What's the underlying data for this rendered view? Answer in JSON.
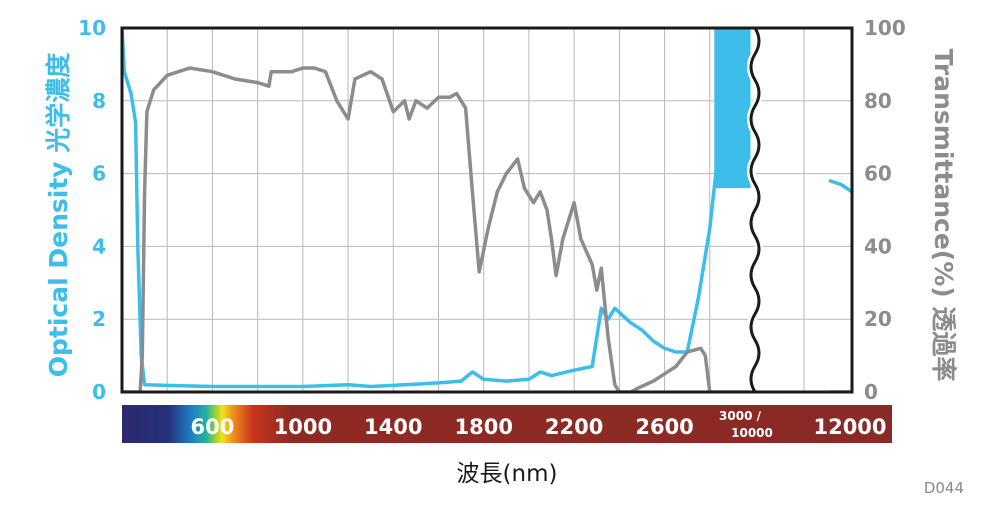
{
  "chart_data": {
    "type": "line",
    "title": "",
    "xlabel": "波長(nm)",
    "ylabel_left": "Optical Density 光学濃度",
    "ylabel_right": "Transmittance(%) 透過率",
    "ylim_left": [
      0,
      10
    ],
    "ylim_right": [
      0,
      100
    ],
    "yticks_left": [
      "0",
      "2",
      "4",
      "6",
      "8",
      "10"
    ],
    "yticks_right": [
      "0",
      "20",
      "40",
      "60",
      "80",
      "100"
    ],
    "xlim": [
      200,
      3000
    ],
    "x_break": {
      "at": 3000,
      "after": [
        3000,
        12000
      ]
    },
    "grid": true,
    "x_scale_labels": [
      {
        "label": "600",
        "x": 600
      },
      {
        "label": "1000",
        "x": 1000
      },
      {
        "label": "1400",
        "x": 1400
      },
      {
        "label": "1800",
        "x": 1800
      },
      {
        "label": "2200",
        "x": 2200
      },
      {
        "label": "2600",
        "x": 2600
      },
      {
        "label": "3000 / 10000",
        "x": 3000
      },
      {
        "label": "12000",
        "x": 12000
      }
    ],
    "series": [
      {
        "name": "Optical Density",
        "axis": "left",
        "color": "#3dbdea",
        "points": [
          [
            200,
            10.0
          ],
          [
            210,
            8.8
          ],
          [
            225,
            8.5
          ],
          [
            240,
            8.2
          ],
          [
            260,
            7.4
          ],
          [
            270,
            4.0
          ],
          [
            285,
            1.0
          ],
          [
            300,
            0.2
          ],
          [
            400,
            0.18
          ],
          [
            600,
            0.15
          ],
          [
            800,
            0.15
          ],
          [
            1000,
            0.15
          ],
          [
            1200,
            0.2
          ],
          [
            1300,
            0.15
          ],
          [
            1450,
            0.2
          ],
          [
            1600,
            0.25
          ],
          [
            1700,
            0.3
          ],
          [
            1750,
            0.55
          ],
          [
            1800,
            0.35
          ],
          [
            1900,
            0.3
          ],
          [
            2000,
            0.35
          ],
          [
            2050,
            0.55
          ],
          [
            2100,
            0.45
          ],
          [
            2200,
            0.6
          ],
          [
            2280,
            0.7
          ],
          [
            2320,
            2.3
          ],
          [
            2350,
            2.0
          ],
          [
            2380,
            2.3
          ],
          [
            2450,
            1.9
          ],
          [
            2500,
            1.7
          ],
          [
            2550,
            1.4
          ],
          [
            2600,
            1.2
          ],
          [
            2650,
            1.1
          ],
          [
            2700,
            1.1
          ],
          [
            2750,
            2.6
          ],
          [
            2800,
            4.5
          ],
          [
            2830,
            6.2
          ],
          [
            2860,
            7.0
          ],
          [
            2900,
            6.5
          ],
          [
            2940,
            6.3
          ],
          [
            2970,
            5.8
          ],
          [
            3000,
            5.7
          ]
        ],
        "points_after_break": [
          [
            10000,
            5.8
          ],
          [
            10500,
            5.75
          ],
          [
            11000,
            5.7
          ],
          [
            11500,
            5.6
          ],
          [
            12000,
            5.5
          ]
        ],
        "dense_band": {
          "x": [
            2820,
            2980
          ],
          "y": [
            5.6,
            10.0
          ]
        }
      },
      {
        "name": "Transmittance",
        "axis": "right",
        "color": "#8c8c8c",
        "points": [
          [
            200,
            0
          ],
          [
            280,
            0
          ],
          [
            290,
            10
          ],
          [
            300,
            55
          ],
          [
            310,
            77
          ],
          [
            340,
            83
          ],
          [
            400,
            87
          ],
          [
            500,
            89
          ],
          [
            600,
            88
          ],
          [
            700,
            86
          ],
          [
            800,
            85
          ],
          [
            850,
            84
          ],
          [
            860,
            88
          ],
          [
            900,
            88
          ],
          [
            950,
            88
          ],
          [
            1000,
            89
          ],
          [
            1050,
            89
          ],
          [
            1100,
            88
          ],
          [
            1150,
            80
          ],
          [
            1200,
            75
          ],
          [
            1230,
            86
          ],
          [
            1300,
            88
          ],
          [
            1350,
            86
          ],
          [
            1400,
            77
          ],
          [
            1450,
            80
          ],
          [
            1470,
            75
          ],
          [
            1500,
            80
          ],
          [
            1550,
            78
          ],
          [
            1600,
            81
          ],
          [
            1650,
            81
          ],
          [
            1680,
            82
          ],
          [
            1720,
            78
          ],
          [
            1750,
            55
          ],
          [
            1780,
            33
          ],
          [
            1820,
            45
          ],
          [
            1860,
            55
          ],
          [
            1900,
            60
          ],
          [
            1950,
            64
          ],
          [
            1980,
            56
          ],
          [
            2020,
            52
          ],
          [
            2050,
            55
          ],
          [
            2080,
            50
          ],
          [
            2100,
            42
          ],
          [
            2120,
            32
          ],
          [
            2150,
            42
          ],
          [
            2200,
            52
          ],
          [
            2230,
            42
          ],
          [
            2280,
            35
          ],
          [
            2300,
            28
          ],
          [
            2320,
            34
          ],
          [
            2350,
            15
          ],
          [
            2380,
            2
          ],
          [
            2400,
            0
          ],
          [
            2450,
            0
          ],
          [
            2480,
            1
          ],
          [
            2550,
            3
          ],
          [
            2600,
            5
          ],
          [
            2650,
            7
          ],
          [
            2700,
            11
          ],
          [
            2760,
            12
          ],
          [
            2780,
            10
          ],
          [
            2800,
            0
          ],
          [
            2850,
            0
          ],
          [
            3000,
            0
          ]
        ],
        "points_after_break": [
          [
            10000,
            0
          ],
          [
            12000,
            0
          ]
        ]
      }
    ]
  },
  "footer_code": "D044"
}
